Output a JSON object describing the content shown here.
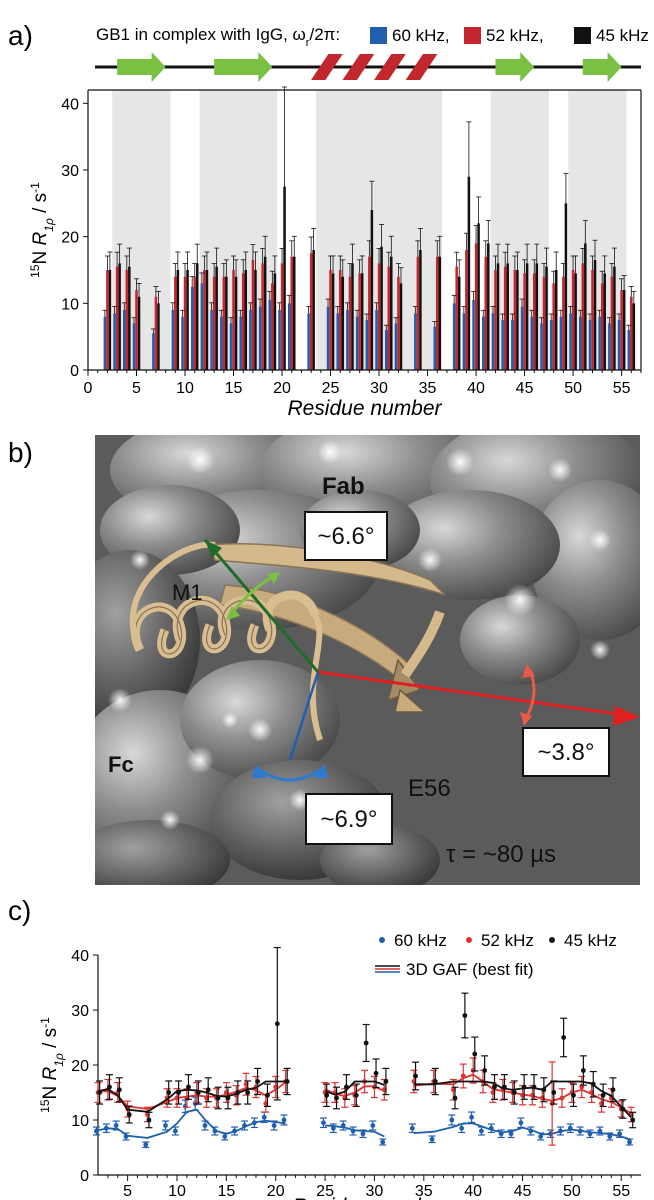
{
  "panel_a": {
    "letter": "a)",
    "legend_title": "GB1 in complex with IgG, ωr/2π:",
    "legend_items": [
      {
        "label": "60 kHz,",
        "color": "#1f5fae"
      },
      {
        "label": "52 kHz,",
        "color": "#c1272d"
      },
      {
        "label": "45 kHz",
        "color": "#111111"
      }
    ],
    "secondary_structure": {
      "strand_color": "#7ac143",
      "helix_color": "#c1272d",
      "strands": [
        [
          3,
          8
        ],
        [
          13,
          19
        ],
        [
          42,
          46
        ],
        [
          51,
          55
        ]
      ],
      "helix": [
        23,
        36
      ]
    }
  },
  "panel_b": {
    "letter": "b)",
    "labels": {
      "fab": "Fab",
      "fc": "Fc",
      "m1": "M1",
      "e56": "E56",
      "angle_green": "~6.6°",
      "angle_red": "~3.8°",
      "angle_blue": "~6.9°",
      "tau": "τ = ~80 µs"
    }
  },
  "panel_c": {
    "letter": "c)",
    "legend": {
      "s60": "60 kHz",
      "s52": "52 kHz",
      "s45": "45 kHz",
      "fit": "3D GAF (best fit)"
    }
  },
  "chart_data": [
    {
      "type": "bar",
      "title": "",
      "xlabel": "Residue number",
      "ylabel": "15N R1ρ / s-1",
      "xlim": [
        0,
        57
      ],
      "ylim": [
        0,
        42
      ],
      "xticks": [
        0,
        5,
        10,
        15,
        20,
        25,
        30,
        35,
        40,
        45,
        50,
        55
      ],
      "yticks": [
        0,
        10,
        20,
        30,
        40
      ],
      "shaded_regions": [
        [
          2.5,
          8.5
        ],
        [
          11.5,
          19.5
        ],
        [
          23.5,
          36.5
        ],
        [
          41.5,
          47.5
        ],
        [
          49.5,
          55.5
        ]
      ],
      "x": [
        2,
        3,
        4,
        5,
        7,
        9,
        10,
        11,
        12,
        13,
        14,
        15,
        16,
        17,
        18,
        19,
        20,
        21,
        23,
        25,
        26,
        27,
        28,
        29,
        30,
        31,
        32,
        34,
        36,
        38,
        39,
        40,
        41,
        42,
        43,
        44,
        45,
        46,
        47,
        48,
        49,
        50,
        51,
        52,
        53,
        54,
        55,
        56
      ],
      "series": [
        {
          "name": "60 kHz",
          "color": "#1f5fae",
          "values": [
            8,
            8.5,
            9,
            7,
            5.5,
            9,
            8,
            12.5,
            13,
            9,
            8,
            7,
            8,
            9,
            9.5,
            10.5,
            9,
            10,
            8.5,
            9.5,
            8.5,
            9,
            8,
            7.5,
            9,
            6,
            7,
            8.5,
            6.5,
            10,
            8.5,
            10.5,
            8,
            8.5,
            7.5,
            7.5,
            9.5,
            8,
            7,
            7.5,
            8,
            8.5,
            8,
            7.5,
            8,
            7,
            7.5,
            6
          ]
        },
        {
          "name": "52 kHz",
          "color": "#c1272d",
          "values": [
            15,
            15.5,
            15,
            12,
            11,
            14,
            14,
            14,
            15,
            14,
            14,
            15,
            14.5,
            16.5,
            16,
            13,
            16,
            17,
            17.5,
            15,
            15,
            14,
            14.5,
            17,
            16,
            15.5,
            14,
            17,
            17,
            15.5,
            18,
            19,
            17,
            15,
            15.5,
            15,
            14.5,
            14.5,
            14,
            13,
            14,
            15,
            16,
            15,
            13,
            14,
            12,
            11
          ]
        },
        {
          "name": "45 kHz",
          "color": "#111111",
          "values": [
            15,
            16,
            15.5,
            11,
            10,
            15,
            15,
            16,
            15,
            15.5,
            14,
            14,
            15,
            15,
            17,
            14.5,
            27.5,
            17,
            18,
            14.5,
            14,
            16,
            14.5,
            24,
            18.5,
            17,
            13,
            18,
            17,
            14,
            29,
            22,
            19,
            16,
            16,
            15,
            16,
            16,
            15.5,
            15,
            25,
            14.5,
            19,
            16.5,
            14.5,
            15.5,
            12,
            10
          ]
        }
      ]
    },
    {
      "type": "scatter",
      "title": "",
      "xlabel": "Residue number",
      "ylabel": "15N R1ρ / s-1",
      "xlim": [
        2,
        57
      ],
      "ylim": [
        0,
        40
      ],
      "xticks": [
        5,
        10,
        15,
        20,
        25,
        30,
        35,
        40,
        45,
        50,
        55
      ],
      "yticks": [
        0,
        10,
        20,
        30,
        40
      ],
      "segments": [
        [
          2,
          21
        ],
        [
          25,
          31
        ],
        [
          34,
          56
        ]
      ],
      "x": [
        2,
        3,
        4,
        5,
        7,
        9,
        10,
        11,
        12,
        13,
        14,
        15,
        16,
        17,
        18,
        19,
        20,
        21,
        23,
        25,
        26,
        27,
        28,
        29,
        30,
        31,
        32,
        34,
        36,
        38,
        39,
        40,
        41,
        42,
        43,
        44,
        45,
        46,
        47,
        48,
        49,
        50,
        51,
        52,
        53,
        54,
        55,
        56
      ],
      "series": [
        {
          "name": "60 kHz",
          "color": "#1f5fae",
          "values": [
            8,
            8.5,
            9,
            7,
            5.5,
            9,
            8,
            12.5,
            13,
            9,
            8,
            7,
            8,
            9,
            9.5,
            10.5,
            9,
            10,
            8.5,
            9.5,
            8.5,
            9,
            8,
            7.5,
            9,
            6,
            7,
            8.5,
            6.5,
            10,
            8.5,
            10.5,
            8,
            8.5,
            7.5,
            7.5,
            9.5,
            8,
            7,
            7.5,
            8,
            8.5,
            8,
            7.5,
            8,
            7,
            7.5,
            6
          ]
        },
        {
          "name": "52 kHz",
          "color": "#e03232",
          "values": [
            15,
            15.5,
            15,
            12,
            11,
            14,
            14,
            14,
            15,
            14,
            14,
            15,
            14.5,
            16.5,
            16,
            13,
            16,
            17,
            17.5,
            15,
            15,
            14,
            14.5,
            17,
            16,
            15.5,
            14,
            17,
            17,
            15.5,
            18,
            19,
            17,
            15,
            15.5,
            15,
            14.5,
            14.5,
            14,
            13,
            14,
            15,
            16,
            15,
            13,
            14,
            12,
            11
          ]
        },
        {
          "name": "45 kHz",
          "color": "#111111",
          "values": [
            15,
            16,
            15.5,
            11,
            10,
            15,
            15,
            16,
            15,
            15.5,
            14,
            14,
            15,
            15,
            17,
            14.5,
            27.5,
            17,
            18,
            14.5,
            14,
            16,
            14.5,
            24,
            18.5,
            17,
            13,
            18,
            17,
            14,
            29,
            22,
            19,
            16,
            16,
            15,
            16,
            16,
            15.5,
            15,
            25,
            14.5,
            19,
            16.5,
            14.5,
            15.5,
            12,
            10
          ]
        }
      ]
    }
  ]
}
